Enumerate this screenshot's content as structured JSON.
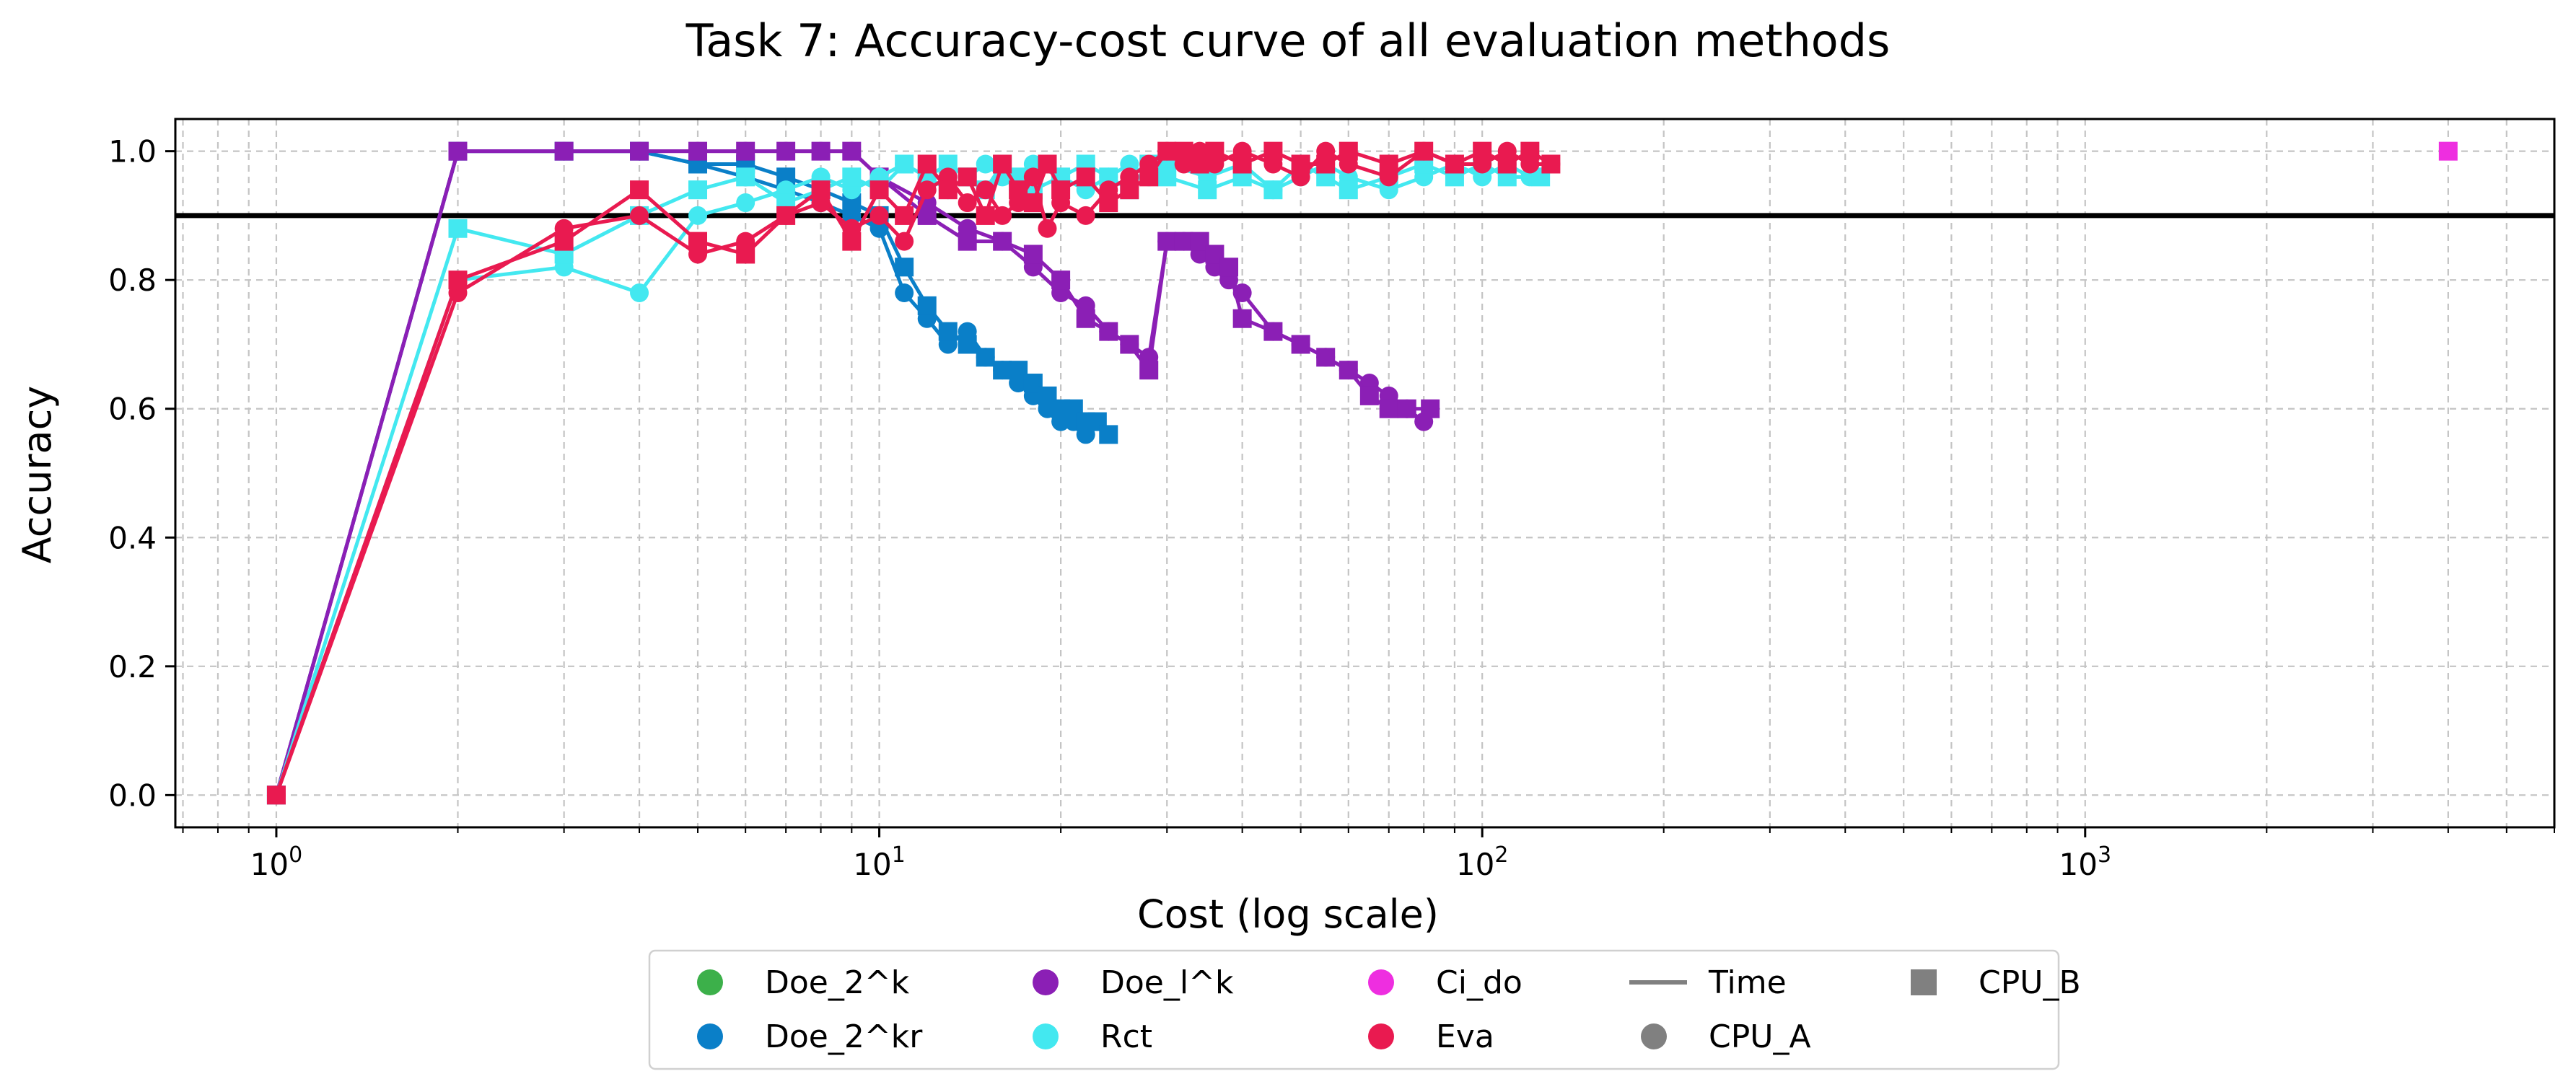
{
  "chart_data": {
    "type": "line",
    "title": "Task 7: Accuracy-cost curve of all evaluation methods",
    "xlabel": "Cost (log scale)",
    "ylabel": "Accuracy",
    "xscale": "log",
    "xlim": [
      0.68,
      6000
    ],
    "ylim": [
      -0.05,
      1.05
    ],
    "grid": true,
    "legend_position": "bottom-center",
    "x_ticks": [
      {
        "value": 1,
        "base": "10",
        "exp": "0"
      },
      {
        "value": 10,
        "base": "10",
        "exp": "1"
      },
      {
        "value": 100,
        "base": "10",
        "exp": "2"
      },
      {
        "value": 1000,
        "base": "10",
        "exp": "3"
      }
    ],
    "y_ticks": [
      {
        "value": 0.0,
        "label": "0.0"
      },
      {
        "value": 0.2,
        "label": "0.2"
      },
      {
        "value": 0.4,
        "label": "0.4"
      },
      {
        "value": 0.6,
        "label": "0.6"
      },
      {
        "value": 0.8,
        "label": "0.8"
      },
      {
        "value": 1.0,
        "label": "1.0"
      }
    ],
    "reference_line": {
      "y": 0.9,
      "color": "#000000"
    },
    "series": [
      {
        "name": "Doe_2^kr",
        "color": "#0a7fc8",
        "marker": "circle",
        "group": "CPU_A",
        "x": [
          1,
          2,
          3,
          4,
          5,
          6,
          7,
          8,
          9,
          10,
          11,
          12,
          13,
          14,
          15,
          16,
          17,
          18,
          19,
          20,
          21,
          22
        ],
        "y": [
          0,
          1.0,
          1.0,
          1.0,
          0.98,
          0.96,
          0.94,
          0.92,
          0.9,
          0.88,
          0.78,
          0.74,
          0.7,
          0.72,
          0.68,
          0.66,
          0.64,
          0.62,
          0.6,
          0.58,
          0.58,
          0.56
        ]
      },
      {
        "name": "Doe_2^kr",
        "color": "#0a7fc8",
        "marker": "square",
        "group": "CPU_B",
        "x": [
          1,
          2,
          3,
          4,
          5,
          6,
          7,
          8,
          9,
          10,
          11,
          12,
          13,
          14,
          15,
          16,
          17,
          18,
          19,
          20,
          21,
          22,
          23,
          24
        ],
        "y": [
          0,
          1.0,
          1.0,
          1.0,
          0.98,
          0.98,
          0.96,
          0.94,
          0.92,
          0.9,
          0.82,
          0.76,
          0.72,
          0.7,
          0.68,
          0.66,
          0.66,
          0.64,
          0.62,
          0.6,
          0.6,
          0.58,
          0.58,
          0.56
        ]
      },
      {
        "name": "Doe_l^k",
        "color": "#8b1fb5",
        "marker": "circle",
        "group": "CPU_A",
        "x": [
          1,
          2,
          3,
          4,
          5,
          6,
          7,
          8,
          9,
          10,
          12,
          14,
          16,
          18,
          20,
          22,
          24,
          26,
          28,
          30,
          32,
          34,
          36,
          38,
          40,
          45,
          50,
          55,
          60,
          65,
          70,
          75,
          80
        ],
        "y": [
          0,
          1.0,
          1.0,
          1.0,
          1.0,
          1.0,
          1.0,
          1.0,
          1.0,
          0.96,
          0.92,
          0.88,
          0.86,
          0.82,
          0.78,
          0.76,
          0.72,
          0.7,
          0.68,
          0.86,
          0.86,
          0.84,
          0.82,
          0.8,
          0.78,
          0.72,
          0.7,
          0.68,
          0.66,
          0.64,
          0.62,
          0.6,
          0.58
        ]
      },
      {
        "name": "Doe_l^k",
        "color": "#8b1fb5",
        "marker": "square",
        "group": "CPU_B",
        "x": [
          1,
          2,
          3,
          4,
          5,
          6,
          7,
          8,
          9,
          10,
          12,
          14,
          16,
          18,
          20,
          22,
          24,
          26,
          28,
          30,
          32,
          34,
          36,
          38,
          40,
          45,
          50,
          55,
          60,
          65,
          70,
          75,
          82
        ],
        "y": [
          0,
          1.0,
          1.0,
          1.0,
          1.0,
          1.0,
          1.0,
          1.0,
          1.0,
          0.96,
          0.9,
          0.86,
          0.86,
          0.84,
          0.8,
          0.74,
          0.72,
          0.7,
          0.66,
          0.86,
          0.86,
          0.86,
          0.84,
          0.82,
          0.74,
          0.72,
          0.7,
          0.68,
          0.66,
          0.62,
          0.6,
          0.6,
          0.6
        ]
      },
      {
        "name": "Rct",
        "color": "#43e8f0",
        "marker": "circle",
        "group": "CPU_A",
        "x": [
          1,
          2,
          3,
          4,
          5,
          6,
          7,
          8,
          9,
          10,
          11,
          12,
          13,
          14,
          15,
          16,
          17,
          18,
          20,
          22,
          24,
          26,
          28,
          30,
          35,
          40,
          45,
          50,
          55,
          60,
          70,
          80,
          90,
          100,
          110,
          120
        ],
        "y": [
          0,
          0.8,
          0.82,
          0.78,
          0.9,
          0.92,
          0.94,
          0.96,
          0.94,
          0.96,
          0.98,
          0.96,
          0.94,
          0.96,
          0.98,
          0.96,
          0.94,
          0.98,
          0.96,
          0.94,
          0.96,
          0.98,
          0.96,
          0.98,
          0.96,
          0.98,
          0.94,
          0.96,
          0.98,
          0.96,
          0.94,
          0.96,
          0.98,
          0.96,
          0.98,
          0.96
        ]
      },
      {
        "name": "Rct",
        "color": "#43e8f0",
        "marker": "square",
        "group": "CPU_B",
        "x": [
          1,
          2,
          3,
          4,
          5,
          6,
          7,
          8,
          9,
          10,
          11,
          12,
          13,
          14,
          15,
          16,
          17,
          18,
          20,
          22,
          24,
          26,
          28,
          30,
          35,
          40,
          45,
          50,
          55,
          60,
          70,
          80,
          90,
          100,
          110,
          125
        ],
        "y": [
          0,
          0.88,
          0.84,
          0.9,
          0.94,
          0.96,
          0.92,
          0.94,
          0.96,
          0.94,
          0.98,
          0.96,
          0.98,
          0.96,
          0.94,
          0.98,
          0.96,
          0.94,
          0.96,
          0.98,
          0.96,
          0.94,
          0.98,
          0.96,
          0.94,
          0.96,
          0.94,
          0.98,
          0.96,
          0.94,
          0.96,
          0.98,
          0.96,
          0.98,
          0.96,
          0.96
        ]
      },
      {
        "name": "Ci_do",
        "color": "#ee2ee0",
        "marker": "square",
        "group": "CPU_B",
        "x": [
          4000
        ],
        "y": [
          1.0
        ]
      },
      {
        "name": "Eva",
        "color": "#e91a50",
        "marker": "circle",
        "group": "CPU_A",
        "x": [
          1,
          2,
          3,
          4,
          5,
          6,
          7,
          8,
          9,
          10,
          11,
          12,
          13,
          14,
          15,
          16,
          17,
          18,
          19,
          20,
          22,
          24,
          26,
          28,
          30,
          32,
          34,
          36,
          40,
          45,
          50,
          55,
          60,
          70,
          80,
          90,
          100,
          110,
          120,
          130
        ],
        "y": [
          0,
          0.78,
          0.88,
          0.9,
          0.84,
          0.86,
          0.9,
          0.92,
          0.88,
          0.9,
          0.86,
          0.94,
          0.96,
          0.92,
          0.94,
          0.9,
          0.92,
          0.96,
          0.88,
          0.92,
          0.9,
          0.94,
          0.96,
          0.98,
          1.0,
          0.98,
          1.0,
          0.98,
          1.0,
          0.98,
          0.96,
          1.0,
          0.98,
          0.96,
          1.0,
          0.98,
          0.98,
          1.0,
          0.98,
          0.98
        ]
      },
      {
        "name": "Eva",
        "color": "#e91a50",
        "marker": "square",
        "group": "CPU_B",
        "x": [
          1,
          2,
          3,
          4,
          5,
          6,
          7,
          8,
          9,
          10,
          11,
          12,
          13,
          14,
          15,
          16,
          17,
          18,
          19,
          20,
          22,
          24,
          26,
          28,
          30,
          32,
          34,
          36,
          40,
          45,
          50,
          55,
          60,
          70,
          80,
          90,
          100,
          110,
          120,
          130
        ],
        "y": [
          0,
          0.8,
          0.86,
          0.94,
          0.86,
          0.84,
          0.9,
          0.94,
          0.86,
          0.94,
          0.9,
          0.98,
          0.94,
          0.96,
          0.9,
          0.98,
          0.94,
          0.92,
          0.98,
          0.94,
          0.96,
          0.92,
          0.94,
          0.96,
          1.0,
          1.0,
          0.98,
          1.0,
          0.98,
          1.0,
          0.98,
          0.98,
          1.0,
          0.98,
          1.0,
          0.98,
          1.0,
          0.98,
          1.0,
          0.98
        ]
      }
    ],
    "legend": [
      {
        "label": "Doe_2^k",
        "color": "#3cb04a",
        "marker": "circle"
      },
      {
        "label": "Doe_2^kr",
        "color": "#0a7fc8",
        "marker": "circle"
      },
      {
        "label": "Doe_l^k",
        "color": "#8b1fb5",
        "marker": "circle"
      },
      {
        "label": "Rct",
        "color": "#43e8f0",
        "marker": "circle"
      },
      {
        "label": "Ci_do",
        "color": "#ee2ee0",
        "marker": "circle"
      },
      {
        "label": "Eva",
        "color": "#e91a50",
        "marker": "circle"
      },
      {
        "label": "Time",
        "color": "#808080",
        "marker": "line"
      },
      {
        "label": "CPU_A",
        "color": "#808080",
        "marker": "circle"
      },
      {
        "label": "CPU_B",
        "color": "#808080",
        "marker": "square"
      }
    ]
  }
}
